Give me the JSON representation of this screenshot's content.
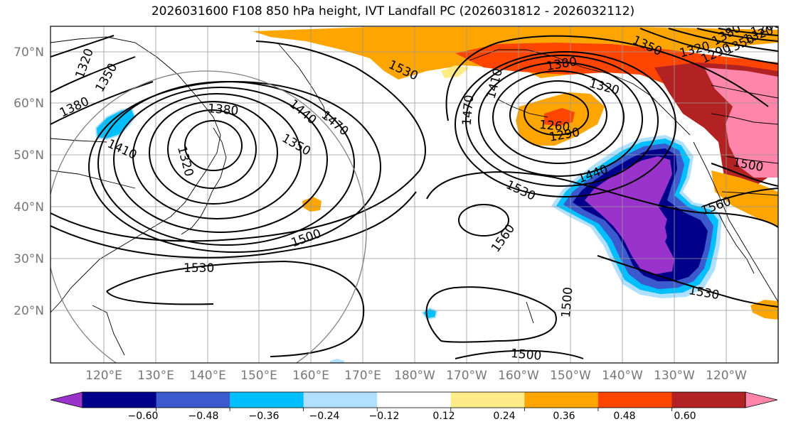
{
  "title": "2026031600 F108 850 hPa height, IVT Landfall PC (2026031812 - 2026032112)",
  "lat_labels": [
    "70°N",
    "60°N",
    "50°N",
    "40°N",
    "30°N",
    "20°N"
  ],
  "lon_labels": [
    "120°E",
    "130°E",
    "140°E",
    "150°E",
    "160°E",
    "170°E",
    "180°W",
    "170°W",
    "160°W",
    "150°W",
    "140°W",
    "130°W",
    "120°W"
  ],
  "colorbar": {
    "tick_labels": [
      "−0.60",
      "−0.48",
      "−0.36",
      "−0.24",
      "−0.12",
      "0.12",
      "0.24",
      "0.36",
      "0.48",
      "0.60"
    ],
    "colors": [
      "#9933cc",
      "#00008b",
      "#3a5acd",
      "#00bfff",
      "#b0e0ff",
      "#ffffff",
      "#ffeb88",
      "#ffa500",
      "#ff4500",
      "#b22222",
      "#ff85aa"
    ]
  },
  "contour_labels": [
    "1320",
    "1350",
    "1380",
    "1410",
    "1380",
    "1320",
    "1350",
    "1440",
    "1470",
    "1500",
    "1530",
    "1530",
    "1380",
    "1350",
    "1320",
    "1410",
    "1470",
    "1260",
    "1290",
    "1320",
    "1380",
    "1350",
    "1320",
    "1290",
    "1260",
    "1440",
    "1530",
    "1560",
    "1500",
    "1560",
    "1530",
    "1500",
    "1500"
  ]
}
